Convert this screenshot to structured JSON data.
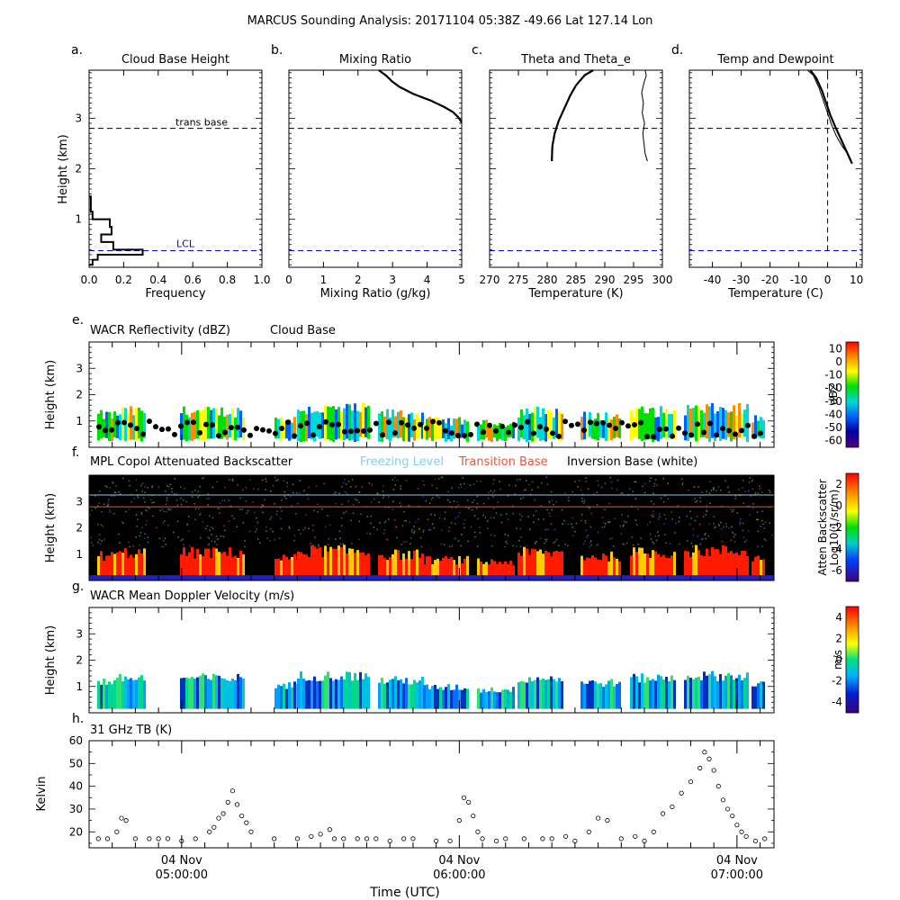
{
  "figure": {
    "title": "MARCUS Sounding Analysis: 20171104 05:38Z   -49.66 Lat  127.14 Lon",
    "time_xlabel": "Time (UTC)",
    "time_ticks": [
      {
        "date": "04 Nov",
        "time": "05:00:00"
      },
      {
        "date": "04 Nov",
        "time": "06:00:00"
      },
      {
        "date": "04 Nov",
        "time": "07:00:00"
      }
    ]
  },
  "colors": {
    "lcl_line": "#0000ff",
    "freezing_level": "#87ceeb",
    "transition_base": "#e8553a",
    "inversion_base": "#ffffff"
  },
  "chart_data": [
    {
      "letter": "a.",
      "type": "histogram",
      "title": "Cloud Base Height",
      "xlabel": "Frequency",
      "ylabel": "Height (km)",
      "xlim": [
        0,
        1.0
      ],
      "ylim": [
        0.05,
        3.95
      ],
      "xticks": [
        "0.0",
        "0.2",
        "0.4",
        "0.6",
        "0.8",
        "1.0"
      ],
      "yticks": [
        "1",
        "2",
        "3"
      ],
      "annotations": {
        "trans_base_label": "trans base",
        "trans_base_height": 2.8,
        "lcl_label": "LCL",
        "lcl_height": 0.38
      },
      "bins": [
        {
          "h0": 0.1,
          "h1": 0.2,
          "f": 0.02
        },
        {
          "h0": 0.2,
          "h1": 0.3,
          "f": 0.05
        },
        {
          "h0": 0.3,
          "h1": 0.4,
          "f": 0.31
        },
        {
          "h0": 0.4,
          "h1": 0.55,
          "f": 0.14
        },
        {
          "h0": 0.55,
          "h1": 0.7,
          "f": 0.07
        },
        {
          "h0": 0.7,
          "h1": 0.85,
          "f": 0.13
        },
        {
          "h0": 0.85,
          "h1": 1.0,
          "f": 0.12
        },
        {
          "h0": 1.0,
          "h1": 1.15,
          "f": 0.02
        },
        {
          "h0": 1.15,
          "h1": 1.3,
          "f": 0.01
        },
        {
          "h0": 1.3,
          "h1": 1.45,
          "f": 0.01
        }
      ]
    },
    {
      "letter": "b.",
      "type": "line",
      "title": "Mixing Ratio",
      "xlabel": "Mixing Ratio (g/kg)",
      "xlim": [
        0,
        5
      ],
      "ylim": [
        0.05,
        3.95
      ],
      "xticks": [
        "0",
        "1",
        "2",
        "3",
        "4",
        "5"
      ],
      "trans_base": 2.8,
      "lcl": 0.38,
      "series": [
        {
          "x": [
            2.6,
            2.8,
            3.0,
            3.2,
            3.6,
            4.1,
            4.5,
            4.75,
            4.9,
            5.0
          ],
          "y": [
            3.95,
            3.85,
            3.72,
            3.62,
            3.48,
            3.35,
            3.22,
            3.12,
            3.02,
            2.92
          ]
        }
      ]
    },
    {
      "letter": "c.",
      "type": "line",
      "title": "Theta and Theta_e",
      "xlabel": "Temperature (K)",
      "xlim": [
        270,
        300
      ],
      "ylim": [
        0.05,
        3.95
      ],
      "xticks": [
        "270",
        "275",
        "280",
        "285",
        "290",
        "295",
        "300"
      ],
      "trans_base": 2.8,
      "lcl": 0.38,
      "series": [
        {
          "x": [
            280.8,
            280.9,
            281.3,
            282.0,
            283.0,
            284.0,
            285.0,
            286.5,
            288.0
          ],
          "y": [
            2.15,
            2.45,
            2.7,
            2.95,
            3.2,
            3.45,
            3.65,
            3.85,
            3.95
          ]
        },
        {
          "x": [
            297.4,
            297.0,
            296.8,
            296.6,
            296.9,
            296.5,
            296.7,
            296.4,
            296.8,
            297.2,
            297.0
          ],
          "y": [
            2.15,
            2.3,
            2.5,
            2.7,
            2.9,
            3.1,
            3.3,
            3.5,
            3.7,
            3.85,
            3.95
          ]
        }
      ]
    },
    {
      "letter": "d.",
      "type": "line",
      "title": "Temp and Dewpoint",
      "xlabel": "Temperature (C)",
      "xlim": [
        -48,
        12
      ],
      "ylim": [
        0.05,
        3.95
      ],
      "xticks": [
        "-40",
        "-30",
        "-20",
        "-10",
        "0",
        "10"
      ],
      "trans_base": 2.8,
      "lcl": 0.38,
      "zero_line": 0,
      "series": [
        {
          "x": [
            8.5,
            6.5,
            4.5,
            2.5,
            1.0,
            -0.5,
            -2.0,
            -4.0,
            -6.0
          ],
          "y": [
            2.1,
            2.35,
            2.6,
            2.85,
            3.05,
            3.3,
            3.55,
            3.8,
            3.95
          ]
        },
        {
          "x": [
            7.5,
            5.0,
            3.0,
            1.5,
            0.0,
            -1.5,
            -3.0,
            -5.0,
            -7.0
          ],
          "y": [
            2.25,
            2.45,
            2.65,
            2.85,
            3.1,
            3.35,
            3.6,
            3.85,
            3.95
          ]
        }
      ]
    },
    {
      "letter": "e.",
      "type": "heatmap",
      "title": "WACR Reflectivity (dBZ)",
      "legend": "Cloud Base",
      "ylabel": "Height (km)",
      "yticks": [
        "1",
        "2",
        "3"
      ],
      "ylim": [
        0,
        4
      ],
      "colorbar": {
        "label": "dBZ",
        "ticks": [
          "10",
          "0",
          "-10",
          "-20",
          "-30",
          "-40",
          "-50",
          "-60"
        ]
      }
    },
    {
      "letter": "f.",
      "type": "heatmap",
      "title": "MPL Copol Attenuated Backscatter",
      "legend": [
        "Freezing Level",
        "Transition Base",
        "Inversion Base (white)"
      ],
      "ylabel": "Height (km)",
      "yticks": [
        "1",
        "2",
        "3"
      ],
      "ylim": [
        0,
        4
      ],
      "freezing_level": 3.25,
      "transition_base": 2.8,
      "colorbar": {
        "label1": "Atten Backscatter",
        "label2": "Log10(1/sr/m)",
        "ticks": [
          "2",
          "0",
          "-2",
          "-4",
          "-6"
        ]
      }
    },
    {
      "letter": "g.",
      "type": "heatmap",
      "title": "WACR Mean Doppler Velocity (m/s)",
      "ylabel": "Height (km)",
      "yticks": [
        "1",
        "2",
        "3"
      ],
      "ylim": [
        0,
        4
      ],
      "colorbar": {
        "label": "m/s",
        "ticks": [
          "4",
          "2",
          "0",
          "-2",
          "-4"
        ]
      }
    },
    {
      "letter": "h.",
      "type": "scatter",
      "title": "31 GHz TB (K)",
      "ylabel": "Kelvin",
      "ylim": [
        13,
        60
      ],
      "yticks": [
        "20",
        "30",
        "40",
        "50",
        "60"
      ],
      "series": [
        {
          "x": [
            "04:42",
            "04:44",
            "04:46",
            "04:47",
            "04:48",
            "04:50",
            "04:53",
            "04:55",
            "04:57",
            "05:00",
            "05:03",
            "05:06",
            "05:07",
            "05:08",
            "05:09",
            "05:10",
            "05:11",
            "05:12",
            "05:13",
            "05:14",
            "05:15",
            "05:20",
            "05:25",
            "05:28",
            "05:30",
            "05:32",
            "05:33",
            "05:35",
            "05:38",
            "05:40",
            "05:42",
            "05:45",
            "05:48",
            "05:50",
            "05:55",
            "05:58",
            "06:00",
            "06:01",
            "06:02",
            "06:03",
            "06:04",
            "06:05",
            "06:08",
            "06:10",
            "06:14",
            "06:18",
            "06:20",
            "06:23",
            "06:25",
            "06:28",
            "06:30",
            "06:32",
            "06:35",
            "06:38",
            "06:40",
            "06:42",
            "06:44",
            "06:46",
            "06:48",
            "06:50",
            "06:52",
            "06:53",
            "06:54",
            "06:55",
            "06:56",
            "06:57",
            "06:58",
            "06:59",
            "07:00",
            "07:01",
            "07:02",
            "07:04",
            "07:06"
          ],
          "y": [
            17,
            17,
            20,
            26,
            25,
            17,
            17,
            17,
            17,
            16,
            17,
            20,
            22,
            26,
            28,
            33,
            38,
            32,
            27,
            24,
            20,
            17,
            17,
            18,
            19,
            21,
            17,
            17,
            17,
            17,
            17,
            16,
            17,
            17,
            16,
            16,
            25,
            35,
            33,
            27,
            20,
            17,
            16,
            17,
            17,
            17,
            17,
            18,
            16,
            20,
            26,
            25,
            17,
            18,
            16,
            20,
            28,
            31,
            37,
            42,
            48,
            55,
            52,
            47,
            40,
            34,
            30,
            27,
            23,
            20,
            18,
            16,
            17
          ]
        }
      ]
    }
  ]
}
